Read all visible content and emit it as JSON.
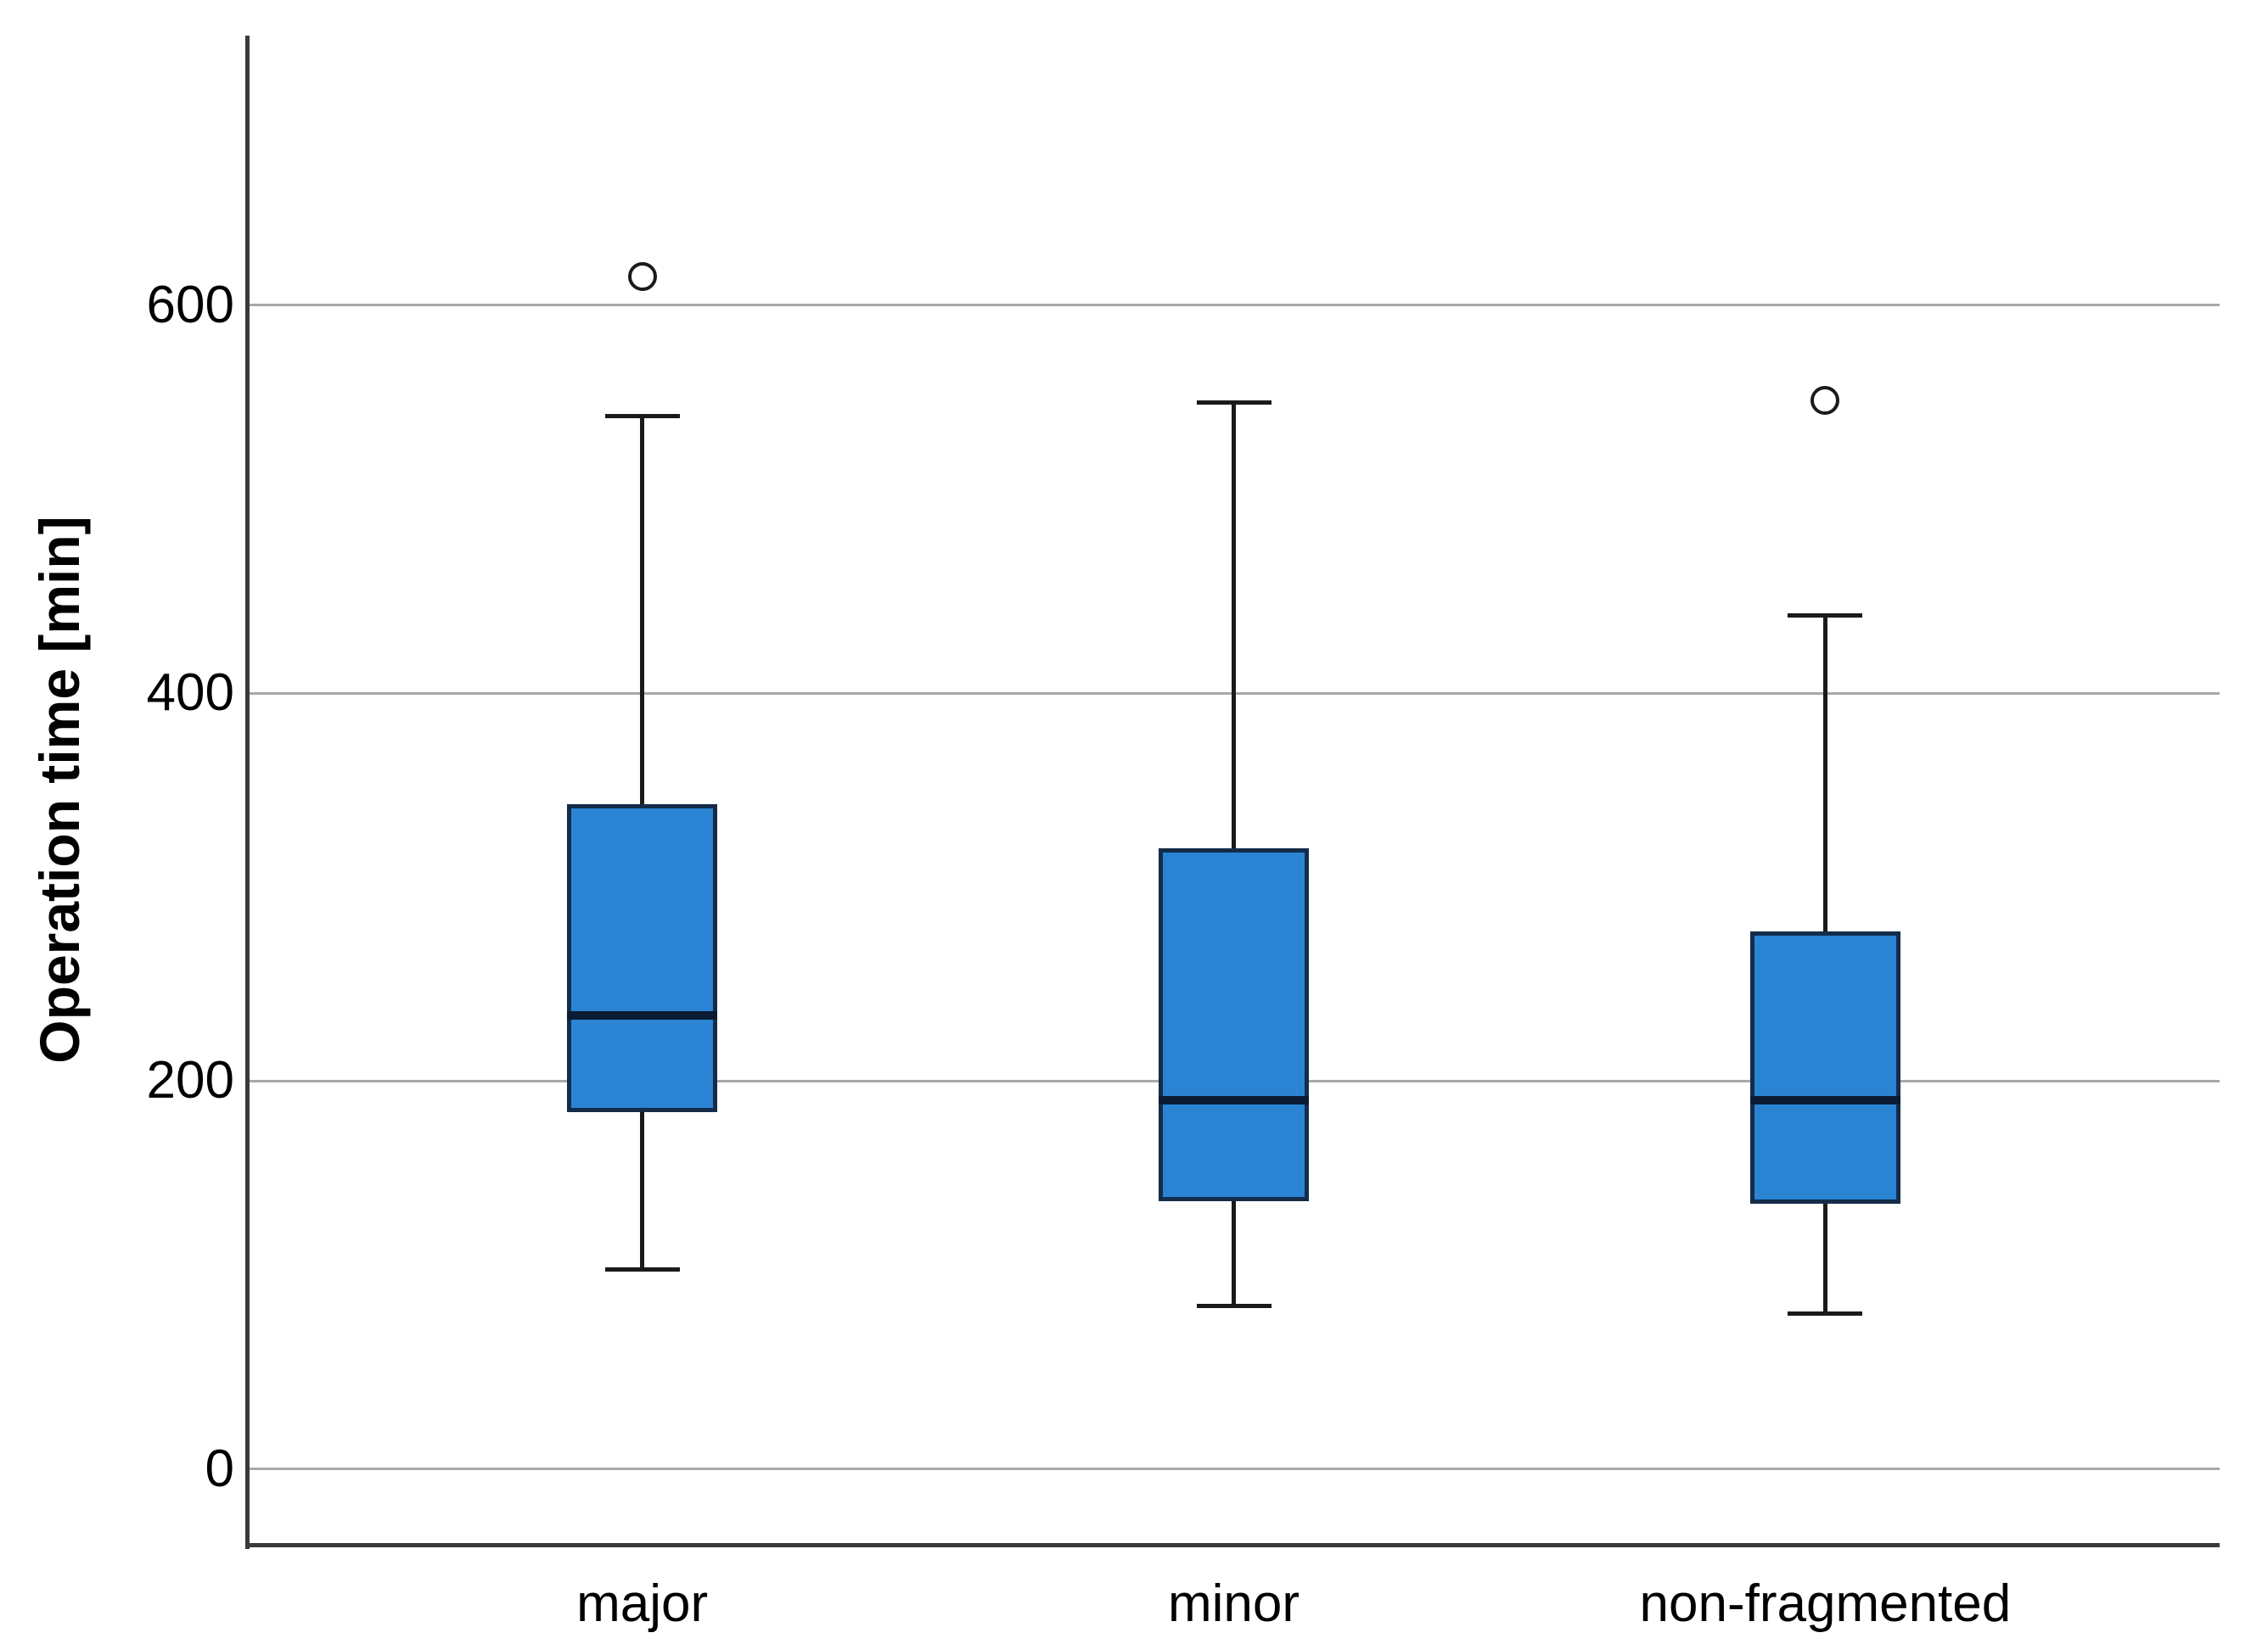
{
  "chart_data": {
    "type": "box",
    "title": "",
    "xlabel": "",
    "ylabel": "Operation time [min]",
    "categories": [
      "major",
      "minor",
      "non-fragmented"
    ],
    "yticks": [
      0,
      200,
      400,
      600
    ],
    "ylim": [
      -39,
      739
    ],
    "grid": "horizontal",
    "legend": "none",
    "series": [
      {
        "name": "major",
        "whisker_low": 103,
        "q1": 184,
        "median": 234,
        "q3": 343,
        "whisker_high": 543,
        "outliers": [
          615
        ]
      },
      {
        "name": "minor",
        "whisker_low": 84,
        "q1": 138,
        "median": 190,
        "q3": 320,
        "whisker_high": 550,
        "outliers": []
      },
      {
        "name": "non-fragmented",
        "whisker_low": 80,
        "q1": 137,
        "median": 190,
        "q3": 277,
        "whisker_high": 440,
        "outliers": [
          551
        ]
      }
    ]
  },
  "colors": {
    "box_fill": "#2A84D3",
    "box_border": "#142C49",
    "median": "#0A1C33",
    "whisker": "#1A1A1A",
    "gridline": "#A8A8A8",
    "axis": "#3A3A3A",
    "text": "#000000",
    "background": "#FFFFFF"
  }
}
